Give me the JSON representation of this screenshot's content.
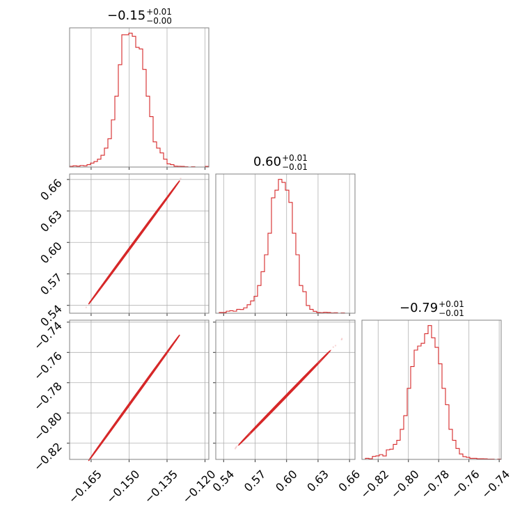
{
  "chart_data": {
    "type": "corner",
    "color": "#d62728",
    "grid": true,
    "parameters": [
      {
        "median": "−0.15",
        "plus": "+0.01",
        "minus": "−0.00",
        "range": [
          -0.1735,
          -0.1185
        ],
        "ticks": [
          -0.165,
          -0.15,
          -0.135,
          -0.12
        ],
        "tick_labels": [
          "−0.165",
          "−0.150",
          "−0.135",
          "−0.120"
        ],
        "hist": [
          0.5,
          0.8,
          0.6,
          1.0,
          0.8,
          1.5,
          2.5,
          3.5,
          5.0,
          7.5,
          12,
          18,
          30,
          45,
          65,
          84,
          84,
          85,
          83,
          76,
          75,
          62,
          45,
          32,
          16,
          12,
          9,
          5,
          2,
          1.5,
          0.6,
          0.5,
          0.4,
          0.2,
          0,
          0.2,
          0,
          0,
          0,
          0.4
        ]
      },
      {
        "median": "0.60",
        "plus": "+0.01",
        "minus": "−0.01",
        "range": [
          0.5325,
          0.6652
        ],
        "ticks": [
          0.54,
          0.57,
          0.6,
          0.63,
          0.66
        ],
        "tick_labels": [
          "0.54",
          "0.57",
          "0.60",
          "0.63",
          "0.66"
        ],
        "hist": [
          0,
          0.5,
          0.5,
          1.3,
          1.6,
          1.3,
          2.5,
          2.4,
          3.5,
          5.5,
          8,
          11,
          18,
          27,
          38,
          52,
          75,
          80,
          87,
          85,
          80,
          72,
          52,
          38,
          18,
          14,
          5,
          2.5,
          1.2,
          0.5,
          0.4,
          0.6,
          0.5,
          0.2,
          0.3,
          0,
          0.2,
          0,
          0,
          0
        ]
      },
      {
        "median": "−0.79",
        "plus": "+0.01",
        "minus": "−0.01",
        "range": [
          -0.8307,
          -0.7387
        ],
        "ticks": [
          -0.82,
          -0.8,
          -0.78,
          -0.76,
          -0.74
        ],
        "tick_labels": [
          "−0.82",
          "−0.80",
          "−0.78",
          "−0.76",
          "−0.74"
        ],
        "hist": [
          0,
          0.8,
          0.5,
          2.2,
          2.6,
          3.5,
          2.5,
          7,
          7.5,
          11,
          14,
          22,
          32,
          52,
          68,
          80,
          83,
          85,
          92,
          98,
          89,
          82,
          70,
          52,
          40,
          22,
          14,
          8,
          4,
          2,
          1.5,
          0.8,
          0.8,
          0.5,
          0.5,
          0.4,
          0.2,
          0.2,
          0,
          0.2
        ]
      }
    ],
    "correlations": {
      "p1_p0": {
        "intercept": 0.6,
        "slope": 3.27
      },
      "p2_p0": {
        "intercept": -0.79,
        "slope": 2.31
      },
      "p2_p1": {
        "intercept": -0.79,
        "slope": 0.714
      }
    }
  }
}
